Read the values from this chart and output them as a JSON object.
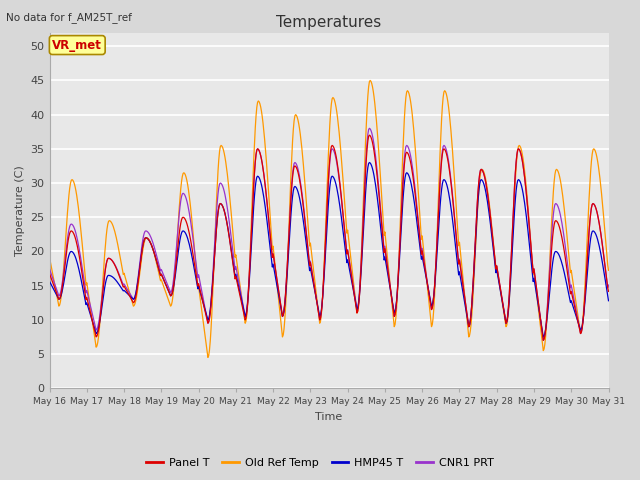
{
  "title": "Temperatures",
  "subtitle": "No data for f_AM25T_ref",
  "ylabel": "Temperature (C)",
  "xlabel": "Time",
  "annotation": "VR_met",
  "ylim": [
    0,
    52
  ],
  "yticks": [
    0,
    5,
    10,
    15,
    20,
    25,
    30,
    35,
    40,
    45,
    50
  ],
  "fig_bg_color": "#d8d8d8",
  "plot_bg_color": "#e8e8e8",
  "grid_color": "#f5f5f5",
  "line_colors": {
    "panel": "#dd0000",
    "old_ref": "#ff9900",
    "hmp45": "#0000cc",
    "cnr1": "#9933cc"
  },
  "legend": [
    "Panel T",
    "Old Ref Temp",
    "HMP45 T",
    "CNR1 PRT"
  ],
  "x_tick_labels": [
    "May 16",
    "May 17",
    "May 18",
    "May 19",
    "May 20",
    "May 21",
    "May 22",
    "May 23",
    "May 24",
    "May 25",
    "May 26",
    "May 27",
    "May 28",
    "May 29",
    "May 30",
    "May 31"
  ],
  "day_peaks_orange": [
    30.5,
    24.5,
    22.0,
    31.5,
    35.5,
    42.0,
    40.0,
    42.5,
    45.0,
    43.5,
    43.5,
    32.0,
    35.5,
    32.0,
    35.0
  ],
  "day_peaks_panel": [
    23.0,
    19.0,
    22.0,
    25.0,
    27.0,
    35.0,
    32.5,
    35.5,
    37.0,
    34.5,
    35.0,
    32.0,
    35.0,
    24.5,
    27.0
  ],
  "day_peaks_blue": [
    20.0,
    16.5,
    22.0,
    23.0,
    27.0,
    31.0,
    29.5,
    31.0,
    33.0,
    31.5,
    30.5,
    30.5,
    30.5,
    20.0,
    23.0
  ],
  "day_peaks_cnr1": [
    24.0,
    19.0,
    23.0,
    28.5,
    30.0,
    35.0,
    33.0,
    35.0,
    38.0,
    35.5,
    35.5,
    32.0,
    35.0,
    27.0,
    27.0
  ],
  "day_mins_orange": [
    12.0,
    6.0,
    12.0,
    12.0,
    4.5,
    9.5,
    7.5,
    9.5,
    11.0,
    9.0,
    9.0,
    7.5,
    9.0,
    5.5,
    8.0
  ],
  "day_mins_panel": [
    13.0,
    7.5,
    12.5,
    13.5,
    9.5,
    10.0,
    10.5,
    10.0,
    11.0,
    10.5,
    11.5,
    9.0,
    9.5,
    7.0,
    8.0
  ],
  "day_mins_blue": [
    13.0,
    8.0,
    13.0,
    13.5,
    10.0,
    10.5,
    10.5,
    10.5,
    11.5,
    11.0,
    12.0,
    9.0,
    9.5,
    7.5,
    8.5
  ],
  "day_mins_cnr1": [
    13.5,
    8.5,
    13.0,
    14.0,
    9.5,
    10.5,
    10.5,
    10.0,
    11.5,
    10.5,
    11.5,
    9.0,
    9.5,
    7.0,
    8.0
  ]
}
